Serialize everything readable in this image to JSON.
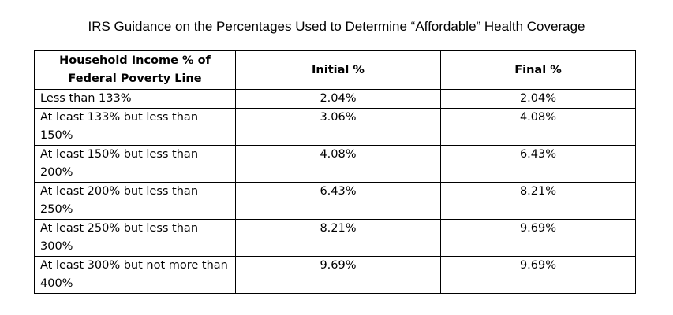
{
  "title": "IRS Guidance on the Percentages Used to Determine “Affordable” Health Coverage",
  "table": {
    "headers": [
      "Household Income % of Federal Poverty Line",
      "Initial %",
      "Final %"
    ],
    "rows": [
      [
        "Less than 133%",
        "2.04%",
        "2.04%"
      ],
      [
        "At least 133% but less than 150%",
        "3.06%",
        "4.08%"
      ],
      [
        "At least 150% but less than 200%",
        "4.08%",
        "6.43%"
      ],
      [
        "At least 200% but less than 250%",
        "6.43%",
        "8.21%"
      ],
      [
        "At least 250% but less than 300%",
        "8.21%",
        "9.69%"
      ],
      [
        "At least 300% but not more than 400%",
        "9.69%",
        "9.69%"
      ]
    ]
  }
}
